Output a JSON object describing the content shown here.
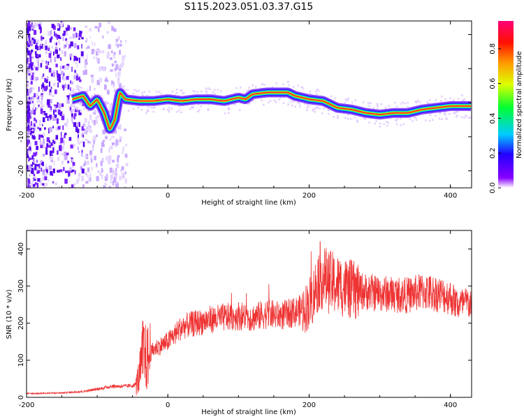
{
  "title": "S115.2023.051.03.37.G15",
  "chart_data": [
    {
      "type": "heatmap",
      "xlabel": "Height of straight line (km)",
      "ylabel": "Frequency (Hz)",
      "xlim": [
        -200,
        430
      ],
      "ylim": [
        -25,
        24
      ],
      "xticks": [
        -200,
        0,
        200,
        400
      ],
      "yticks": [
        -20,
        -10,
        0,
        10,
        20
      ],
      "colorbar": {
        "label": "Normalized spectral amplitude",
        "range": [
          0,
          0.96
        ],
        "ticks": [
          0.0,
          0.2,
          0.4,
          0.6,
          0.8
        ],
        "colors": [
          "#ffffff",
          "#6600ff",
          "#0000ff",
          "#00ffff",
          "#00ff00",
          "#ffff00",
          "#ff9900",
          "#ff0000",
          "#ff0099"
        ]
      },
      "ridge": {
        "x": [
          -135,
          -120,
          -110,
          -100,
          -90,
          -82,
          -75,
          -68,
          -60,
          -40,
          -20,
          0,
          20,
          40,
          60,
          80,
          100,
          110,
          120,
          140,
          160,
          170,
          180,
          200,
          220,
          240,
          260,
          280,
          300,
          320,
          340,
          360,
          380,
          400,
          430
        ],
        "y": [
          1,
          2,
          -1,
          1,
          -3,
          -8,
          -5,
          3,
          1,
          0.5,
          0.5,
          1,
          0.5,
          1,
          1,
          0.5,
          1.5,
          1,
          2.5,
          3,
          3,
          3,
          2,
          1,
          0.5,
          -1.5,
          -2,
          -3,
          -3.5,
          -3,
          -3,
          -2,
          -1.5,
          -1,
          -1
        ]
      }
    },
    {
      "type": "line",
      "xlabel": "Height of straight line (km)",
      "ylabel": "SNR (10 * v/v)",
      "xlim": [
        -200,
        430
      ],
      "ylim": [
        0,
        450
      ],
      "xticks": [
        -200,
        0,
        200,
        400
      ],
      "yticks": [
        0,
        100,
        200,
        300,
        400
      ],
      "color": "#ee3333",
      "series": {
        "name": "SNR",
        "envelope_x": [
          -200,
          -150,
          -120,
          -100,
          -80,
          -60,
          -50,
          -45,
          -40,
          -35,
          -30,
          -20,
          0,
          20,
          40,
          60,
          80,
          100,
          120,
          140,
          160,
          180,
          195,
          205,
          215,
          230,
          260,
          300,
          340,
          360,
          380,
          400,
          410,
          430
        ],
        "envelope_y": [
          10,
          12,
          16,
          22,
          30,
          30,
          32,
          35,
          60,
          120,
          100,
          130,
          150,
          190,
          200,
          210,
          215,
          220,
          215,
          225,
          220,
          230,
          240,
          270,
          330,
          310,
          290,
          280,
          275,
          285,
          280,
          270,
          250,
          255
        ]
      }
    }
  ]
}
